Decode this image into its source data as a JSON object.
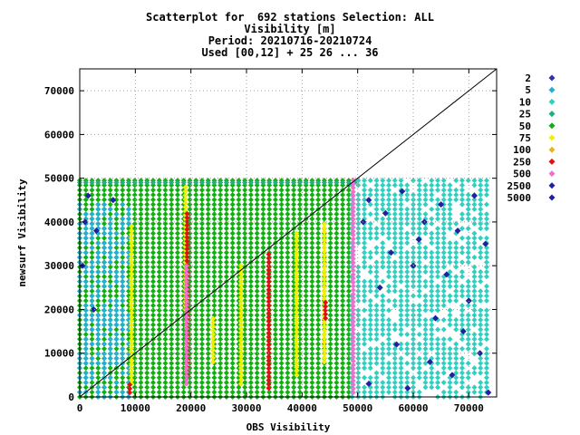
{
  "chart_data": {
    "type": "scatter",
    "title_lines": [
      "Scatterplot for  692 stations Selection: ALL",
      "Visibility [m]",
      "Period: 20210716-20210724",
      "Used [00,12] + 25 26 ... 36"
    ],
    "xlabel": "OBS Visibility",
    "ylabel": "newsurf Visibility",
    "xlim": [
      0,
      75000
    ],
    "ylim": [
      0,
      75000
    ],
    "x_ticks": [
      0,
      10000,
      20000,
      30000,
      40000,
      50000,
      60000,
      70000
    ],
    "y_ticks": [
      0,
      10000,
      20000,
      30000,
      40000,
      50000,
      60000,
      70000
    ],
    "grid": true,
    "diagonal_line": true,
    "legend_placement": "right",
    "legend": [
      {
        "label": "2",
        "color": "#3030b0"
      },
      {
        "label": "5",
        "color": "#20b0d0"
      },
      {
        "label": "10",
        "color": "#30d0c0"
      },
      {
        "label": "25",
        "color": "#20b080"
      },
      {
        "label": "50",
        "color": "#10b010"
      },
      {
        "label": "75",
        "color": "#f0f000"
      },
      {
        "label": "100",
        "color": "#f0b020"
      },
      {
        "label": "250",
        "color": "#e01010"
      },
      {
        "label": "500",
        "color": "#f070d0"
      },
      {
        "label": "2500",
        "color": "#2020a0"
      },
      {
        "label": "5000",
        "color": "#2020a0"
      }
    ],
    "point_regions": [
      {
        "series": "50",
        "x": [
          0,
          49000
        ],
        "y": [
          0,
          49500
        ]
      },
      {
        "series": "25",
        "x": [
          0,
          50000
        ],
        "y": [
          49000,
          50000
        ]
      },
      {
        "series": "10",
        "x": [
          49000,
          74000
        ],
        "y": [
          0,
          50000
        ]
      },
      {
        "series": "5",
        "x": [
          0,
          9000
        ],
        "y": [
          0,
          45000
        ]
      }
    ],
    "vertical_strips": [
      {
        "series": "75",
        "x": 19000,
        "y": [
          20000,
          48000
        ]
      },
      {
        "series": "75",
        "x": 9300,
        "y": [
          3000,
          39000
        ]
      },
      {
        "series": "75",
        "x": 24000,
        "y": [
          8000,
          18000
        ]
      },
      {
        "series": "75",
        "x": 29000,
        "y": [
          3000,
          30000
        ]
      },
      {
        "series": "75",
        "x": 39000,
        "y": [
          5000,
          38000
        ]
      },
      {
        "series": "75",
        "x": 44000,
        "y": [
          8000,
          40000
        ]
      },
      {
        "series": "250",
        "x": 19300,
        "y": [
          5000,
          42000
        ]
      },
      {
        "series": "250",
        "x": 34000,
        "y": [
          2000,
          33000
        ]
      },
      {
        "series": "250",
        "x": 44200,
        "y": [
          18000,
          22000
        ]
      },
      {
        "series": "500",
        "x": 19200,
        "y": [
          3000,
          30000
        ]
      },
      {
        "series": "500",
        "x": 49200,
        "y": [
          1000,
          50000
        ]
      },
      {
        "series": "250",
        "x": 9000,
        "y": [
          1000,
          3000
        ]
      }
    ],
    "sparse_points": [
      {
        "series": "2500",
        "x": 1500,
        "y": 46000
      },
      {
        "series": "2500",
        "x": 1000,
        "y": 40000
      },
      {
        "series": "2500",
        "x": 3000,
        "y": 38000
      },
      {
        "series": "2500",
        "x": 500,
        "y": 30000
      },
      {
        "series": "2500",
        "x": 2500,
        "y": 20000
      },
      {
        "series": "2500",
        "x": 6000,
        "y": 45000
      },
      {
        "series": "2500",
        "x": 52000,
        "y": 45000
      },
      {
        "series": "2500",
        "x": 55000,
        "y": 42000
      },
      {
        "series": "2500",
        "x": 58000,
        "y": 47000
      },
      {
        "series": "2500",
        "x": 62000,
        "y": 40000
      },
      {
        "series": "2500",
        "x": 65000,
        "y": 44000
      },
      {
        "series": "2500",
        "x": 68000,
        "y": 38000
      },
      {
        "series": "2500",
        "x": 71000,
        "y": 46000
      },
      {
        "series": "2500",
        "x": 73000,
        "y": 35000
      },
      {
        "series": "2500",
        "x": 60000,
        "y": 30000
      },
      {
        "series": "2500",
        "x": 54000,
        "y": 25000
      },
      {
        "series": "2500",
        "x": 66000,
        "y": 28000
      },
      {
        "series": "2500",
        "x": 70000,
        "y": 22000
      },
      {
        "series": "2500",
        "x": 57000,
        "y": 12000
      },
      {
        "series": "2500",
        "x": 63000,
        "y": 8000
      },
      {
        "series": "2500",
        "x": 67000,
        "y": 5000
      },
      {
        "series": "2500",
        "x": 72000,
        "y": 10000
      },
      {
        "series": "2500",
        "x": 52000,
        "y": 3000
      },
      {
        "series": "2500",
        "x": 59000,
        "y": 2000
      },
      {
        "series": "2500",
        "x": 73500,
        "y": 1000
      },
      {
        "series": "2500",
        "x": 61000,
        "y": 36000
      },
      {
        "series": "2500",
        "x": 56000,
        "y": 33000
      },
      {
        "series": "2500",
        "x": 69000,
        "y": 15000
      },
      {
        "series": "2500",
        "x": 64000,
        "y": 18000
      },
      {
        "series": "2500",
        "x": 51000,
        "y": 40000
      }
    ]
  }
}
